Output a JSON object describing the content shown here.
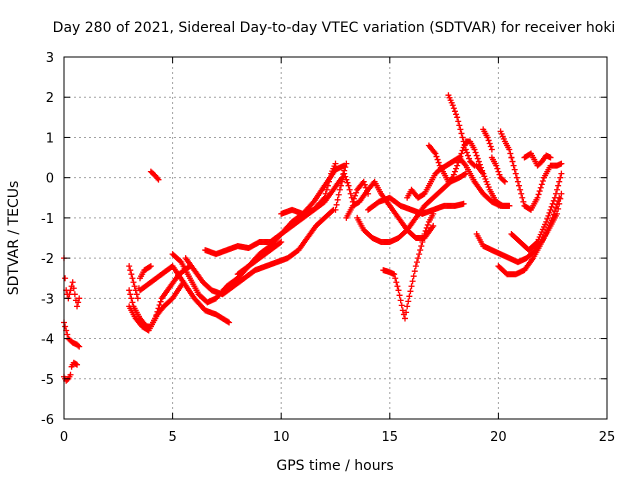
{
  "chart_data": {
    "type": "scatter",
    "title": "Day 280 of 2021, Sidereal Day-to-day VTEC variation (SDTVAR) for receiver hoki",
    "xlabel": "GPS time / hours",
    "ylabel": "SDTVAR / TECUs",
    "xlim": [
      0,
      25
    ],
    "ylim": [
      -6,
      3
    ],
    "xticks": [
      "0",
      "5",
      "10",
      "15",
      "20",
      "25"
    ],
    "yticks": [
      "-6",
      "-5",
      "-4",
      "-3",
      "-2",
      "-1",
      "0",
      "1",
      "2",
      "3"
    ],
    "grid": true,
    "marker": "plus",
    "color": "#ff0000",
    "series": [
      {
        "traces": [
          [
            [
              0.0,
              -2.0
            ],
            [
              0.05,
              -2.5
            ],
            [
              0.1,
              -2.8
            ],
            [
              0.2,
              -3.0
            ],
            [
              0.3,
              -2.8
            ],
            [
              0.4,
              -2.6
            ],
            [
              0.5,
              -2.9
            ],
            [
              0.6,
              -3.2
            ],
            [
              0.7,
              -3.0
            ]
          ],
          [
            [
              0.0,
              -3.6
            ],
            [
              0.1,
              -3.8
            ],
            [
              0.2,
              -4.0
            ],
            [
              0.4,
              -4.1
            ],
            [
              0.6,
              -4.15
            ],
            [
              0.7,
              -4.2
            ]
          ],
          [
            [
              0.0,
              -4.95
            ],
            [
              0.1,
              -5.05
            ],
            [
              0.2,
              -5.0
            ],
            [
              0.3,
              -4.9
            ]
          ],
          [
            [
              0.35,
              -4.7
            ],
            [
              0.45,
              -4.6
            ],
            [
              0.6,
              -4.65
            ]
          ],
          [
            [
              4.0,
              0.15
            ],
            [
              4.2,
              0.05
            ],
            [
              4.35,
              -0.05
            ]
          ],
          [
            [
              3.0,
              -2.2
            ],
            [
              3.2,
              -2.6
            ],
            [
              3.4,
              -3.0
            ],
            [
              3.5,
              -2.5
            ],
            [
              3.7,
              -2.3
            ],
            [
              4.0,
              -2.2
            ]
          ],
          [
            [
              3.0,
              -2.8
            ],
            [
              3.2,
              -3.2
            ],
            [
              3.5,
              -3.5
            ],
            [
              3.8,
              -3.7
            ],
            [
              4.0,
              -3.7
            ],
            [
              4.3,
              -3.4
            ],
            [
              4.6,
              -3.2
            ],
            [
              5.0,
              -3.0
            ],
            [
              5.5,
              -2.6
            ]
          ],
          [
            [
              3.0,
              -3.2
            ],
            [
              3.3,
              -3.5
            ],
            [
              3.6,
              -3.7
            ],
            [
              3.9,
              -3.8
            ],
            [
              4.2,
              -3.5
            ],
            [
              4.5,
              -3.0
            ],
            [
              4.9,
              -2.7
            ],
            [
              5.3,
              -2.4
            ],
            [
              5.8,
              -2.2
            ]
          ],
          [
            [
              3.5,
              -2.8
            ],
            [
              4.0,
              -2.6
            ],
            [
              4.5,
              -2.4
            ],
            [
              5.0,
              -2.2
            ],
            [
              5.5,
              -2.6
            ],
            [
              6.0,
              -3.0
            ],
            [
              6.5,
              -3.3
            ],
            [
              7.0,
              -3.4
            ],
            [
              7.6,
              -3.6
            ]
          ],
          [
            [
              5.0,
              -1.9
            ],
            [
              5.4,
              -2.1
            ],
            [
              5.8,
              -2.5
            ],
            [
              6.2,
              -2.9
            ],
            [
              6.6,
              -3.1
            ],
            [
              7.0,
              -3.0
            ],
            [
              7.5,
              -2.7
            ],
            [
              8.0,
              -2.5
            ],
            [
              8.5,
              -2.2
            ],
            [
              9.0,
              -2.0
            ],
            [
              9.5,
              -1.8
            ],
            [
              10.0,
              -1.6
            ]
          ],
          [
            [
              5.6,
              -2.0
            ],
            [
              6.0,
              -2.3
            ],
            [
              6.4,
              -2.6
            ],
            [
              6.8,
              -2.8
            ],
            [
              7.3,
              -2.9
            ],
            [
              7.8,
              -2.7
            ],
            [
              8.3,
              -2.5
            ],
            [
              8.8,
              -2.3
            ],
            [
              9.3,
              -2.2
            ],
            [
              9.8,
              -2.1
            ],
            [
              10.3,
              -2.0
            ],
            [
              10.8,
              -1.8
            ],
            [
              11.2,
              -1.5
            ],
            [
              11.6,
              -1.2
            ],
            [
              12.0,
              -1.0
            ],
            [
              12.4,
              -0.8
            ]
          ],
          [
            [
              6.5,
              -1.8
            ],
            [
              7.0,
              -1.9
            ],
            [
              7.5,
              -1.8
            ],
            [
              8.0,
              -1.7
            ],
            [
              8.5,
              -1.75
            ],
            [
              9.0,
              -1.6
            ],
            [
              9.5,
              -1.6
            ],
            [
              10.0,
              -1.4
            ],
            [
              10.5,
              -1.1
            ],
            [
              11.0,
              -0.9
            ],
            [
              11.5,
              -0.6
            ],
            [
              12.0,
              -0.2
            ],
            [
              12.5,
              0.2
            ],
            [
              12.9,
              0.3
            ]
          ],
          [
            [
              8.0,
              -2.4
            ],
            [
              8.5,
              -2.2
            ],
            [
              9.0,
              -1.9
            ],
            [
              9.5,
              -1.7
            ],
            [
              10.0,
              -1.4
            ],
            [
              10.5,
              -1.2
            ],
            [
              11.0,
              -1.0
            ],
            [
              11.5,
              -0.8
            ],
            [
              12.0,
              -0.6
            ],
            [
              12.4,
              -0.3
            ],
            [
              12.8,
              0.0
            ],
            [
              13.0,
              0.35
            ]
          ],
          [
            [
              10.0,
              -0.9
            ],
            [
              10.5,
              -0.8
            ],
            [
              11.0,
              -0.9
            ],
            [
              11.5,
              -0.8
            ],
            [
              12.0,
              -0.5
            ],
            [
              12.3,
              0.1
            ],
            [
              12.5,
              0.35
            ]
          ],
          [
            [
              12.5,
              -0.8
            ],
            [
              12.7,
              -0.3
            ],
            [
              12.9,
              0.1
            ],
            [
              13.1,
              -0.2
            ],
            [
              13.3,
              -0.6
            ],
            [
              13.5,
              -0.3
            ],
            [
              13.8,
              -0.1
            ],
            [
              14.0,
              -0.4
            ]
          ],
          [
            [
              13.0,
              -1.0
            ],
            [
              13.3,
              -0.7
            ],
            [
              13.6,
              -0.6
            ],
            [
              14.0,
              -0.3
            ],
            [
              14.3,
              -0.1
            ],
            [
              14.6,
              -0.4
            ],
            [
              15.0,
              -0.7
            ],
            [
              15.4,
              -1.0
            ],
            [
              15.8,
              -1.3
            ],
            [
              16.2,
              -1.5
            ],
            [
              16.6,
              -1.5
            ],
            [
              17.0,
              -1.2
            ]
          ],
          [
            [
              13.5,
              -1.0
            ],
            [
              13.8,
              -1.3
            ],
            [
              14.2,
              -1.5
            ],
            [
              14.6,
              -1.6
            ],
            [
              15.0,
              -1.6
            ],
            [
              15.4,
              -1.5
            ],
            [
              15.8,
              -1.3
            ],
            [
              16.2,
              -1.0
            ],
            [
              16.6,
              -0.7
            ],
            [
              17.0,
              -0.5
            ],
            [
              17.4,
              -0.3
            ],
            [
              17.8,
              -0.1
            ],
            [
              18.2,
              0.0
            ],
            [
              18.5,
              0.1
            ]
          ],
          [
            [
              14.0,
              -0.8
            ],
            [
              14.5,
              -0.6
            ],
            [
              15.0,
              -0.5
            ],
            [
              15.5,
              -0.7
            ],
            [
              16.0,
              -0.8
            ],
            [
              16.5,
              -0.9
            ],
            [
              17.0,
              -0.8
            ],
            [
              17.5,
              -0.7
            ],
            [
              18.0,
              -0.7
            ],
            [
              18.4,
              -0.65
            ]
          ],
          [
            [
              14.7,
              -2.3
            ],
            [
              15.0,
              -2.35
            ],
            [
              15.2,
              -2.4
            ],
            [
              15.4,
              -2.8
            ],
            [
              15.6,
              -3.3
            ],
            [
              15.7,
              -3.5
            ],
            [
              15.8,
              -3.2
            ],
            [
              16.0,
              -2.7
            ],
            [
              16.2,
              -2.2
            ],
            [
              16.4,
              -1.8
            ],
            [
              16.6,
              -1.4
            ],
            [
              16.8,
              -1.1
            ],
            [
              17.0,
              -0.9
            ]
          ],
          [
            [
              15.8,
              -0.5
            ],
            [
              16.0,
              -0.3
            ],
            [
              16.3,
              -0.5
            ],
            [
              16.6,
              -0.4
            ],
            [
              16.9,
              -0.1
            ],
            [
              17.1,
              0.1
            ],
            [
              17.3,
              0.2
            ],
            [
              17.6,
              0.3
            ],
            [
              17.9,
              0.4
            ],
            [
              18.2,
              0.5
            ],
            [
              18.5,
              0.3
            ],
            [
              18.9,
              -0.1
            ],
            [
              19.3,
              -0.4
            ],
            [
              19.7,
              -0.6
            ],
            [
              20.1,
              -0.7
            ],
            [
              20.5,
              -0.7
            ]
          ],
          [
            [
              16.8,
              0.8
            ],
            [
              17.1,
              0.6
            ],
            [
              17.3,
              0.3
            ],
            [
              17.5,
              0.1
            ],
            [
              17.7,
              -0.1
            ],
            [
              17.9,
              0.0
            ],
            [
              18.1,
              0.3
            ],
            [
              18.3,
              0.6
            ],
            [
              18.5,
              0.9
            ],
            [
              18.7,
              0.9
            ],
            [
              18.9,
              0.7
            ],
            [
              19.1,
              0.4
            ],
            [
              19.3,
              0.1
            ]
          ],
          [
            [
              17.7,
              2.05
            ],
            [
              17.9,
              1.8
            ],
            [
              18.1,
              1.5
            ],
            [
              18.3,
              1.1
            ],
            [
              18.5,
              0.7
            ],
            [
              18.7,
              0.4
            ],
            [
              18.9,
              0.3
            ]
          ],
          [
            [
              19.0,
              0.3
            ],
            [
              19.3,
              0.1
            ],
            [
              19.6,
              -0.3
            ],
            [
              19.9,
              -0.6
            ],
            [
              20.2,
              -0.7
            ],
            [
              20.5,
              -0.7
            ]
          ],
          [
            [
              19.3,
              1.2
            ],
            [
              19.5,
              1.0
            ],
            [
              19.7,
              0.7
            ]
          ],
          [
            [
              20.1,
              1.15
            ],
            [
              20.3,
              0.9
            ],
            [
              20.5,
              0.7
            ],
            [
              20.6,
              0.5
            ]
          ],
          [
            [
              19.7,
              0.5
            ],
            [
              19.9,
              0.3
            ],
            [
              20.1,
              0.0
            ],
            [
              20.3,
              -0.1
            ]
          ],
          [
            [
              19.0,
              -1.4
            ],
            [
              19.3,
              -1.7
            ],
            [
              19.7,
              -1.8
            ],
            [
              20.1,
              -1.9
            ],
            [
              20.5,
              -2.0
            ],
            [
              20.9,
              -2.1
            ],
            [
              21.3,
              -2.0
            ],
            [
              21.7,
              -1.8
            ],
            [
              22.1,
              -1.5
            ],
            [
              22.5,
              -1.0
            ],
            [
              22.8,
              -0.5
            ]
          ],
          [
            [
              20.0,
              -2.2
            ],
            [
              20.4,
              -2.4
            ],
            [
              20.8,
              -2.4
            ],
            [
              21.2,
              -2.3
            ],
            [
              21.6,
              -2.0
            ],
            [
              22.0,
              -1.6
            ],
            [
              22.4,
              -1.2
            ],
            [
              22.7,
              -0.9
            ],
            [
              22.9,
              -0.4
            ]
          ],
          [
            [
              20.6,
              -1.4
            ],
            [
              21.0,
              -1.6
            ],
            [
              21.4,
              -1.8
            ],
            [
              21.8,
              -1.6
            ],
            [
              22.2,
              -1.1
            ],
            [
              22.6,
              -0.5
            ],
            [
              22.9,
              0.1
            ]
          ],
          [
            [
              20.6,
              0.5
            ],
            [
              20.8,
              0.1
            ],
            [
              21.0,
              -0.3
            ],
            [
              21.2,
              -0.7
            ],
            [
              21.5,
              -0.8
            ],
            [
              21.8,
              -0.5
            ],
            [
              22.1,
              0.0
            ],
            [
              22.4,
              0.3
            ],
            [
              22.7,
              0.3
            ],
            [
              22.9,
              0.35
            ]
          ],
          [
            [
              21.2,
              0.5
            ],
            [
              21.5,
              0.6
            ],
            [
              21.8,
              0.3
            ],
            [
              22.0,
              0.4
            ],
            [
              22.2,
              0.55
            ],
            [
              22.4,
              0.5
            ]
          ]
        ]
      }
    ]
  }
}
